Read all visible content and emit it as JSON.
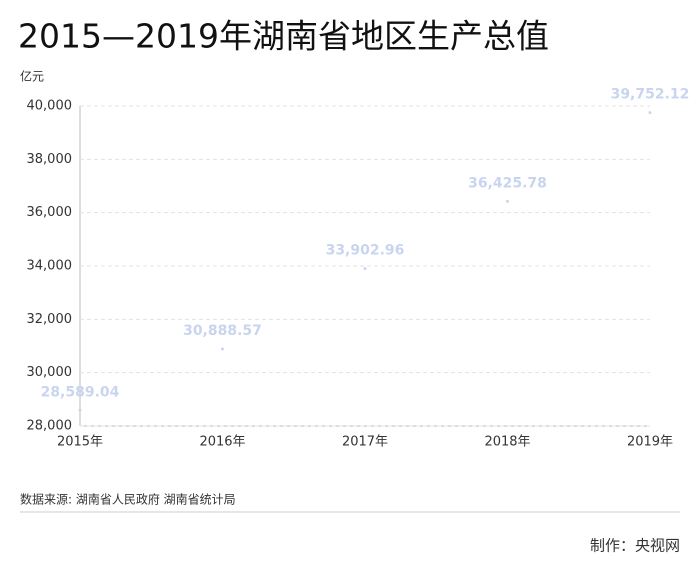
{
  "chart_data": {
    "type": "scatter",
    "title": "2015—2019年湖南省地区生产总值",
    "y_label": "亿元",
    "categories": [
      "2015年",
      "2016年",
      "2017年",
      "2018年",
      "2019年"
    ],
    "values": [
      28589.04,
      30888.57,
      33902.96,
      36425.78,
      39752.12
    ],
    "value_labels": [
      "28,589.04",
      "30,888.57",
      "33,902.96",
      "36,425.78",
      "39,752.12"
    ],
    "color": "#c9d5ef",
    "ylim": [
      28000,
      40000
    ],
    "yticks": [
      {
        "value": 28000,
        "label": "28,000"
      },
      {
        "value": 30000,
        "label": "30,000"
      },
      {
        "value": 32000,
        "label": "32,000"
      },
      {
        "value": 34000,
        "label": "34,000"
      },
      {
        "value": 36000,
        "label": "36,000"
      },
      {
        "value": 38000,
        "label": "38,000"
      },
      {
        "value": 40000,
        "label": "40,000"
      }
    ],
    "grid": true,
    "source": "数据来源: 湖南省人民政府 湖南省统计局",
    "credit": "制作：央视网"
  }
}
